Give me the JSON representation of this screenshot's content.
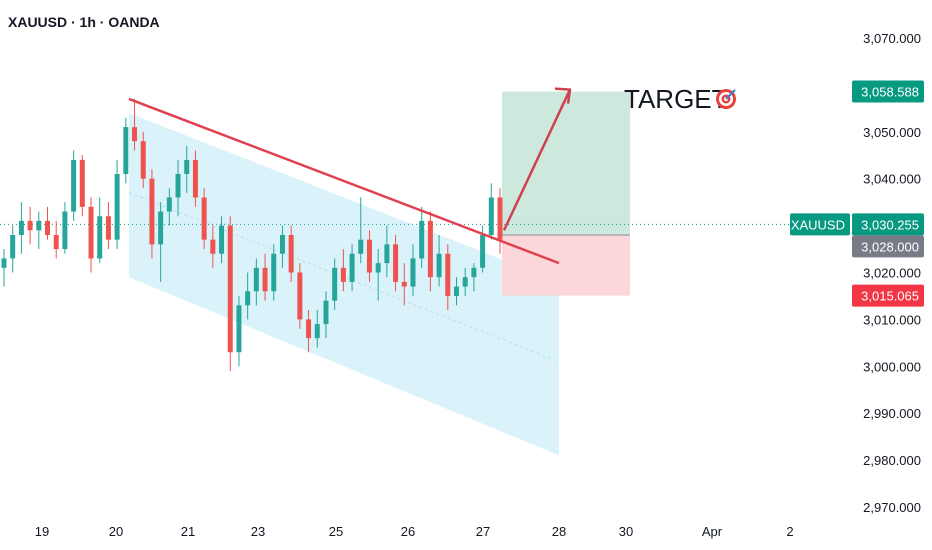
{
  "header": {
    "title": "XAUUSD · 1h · OANDA"
  },
  "colors": {
    "up": "#26a69a",
    "down": "#ef5350",
    "trendline": "#e0404f",
    "channel_fill": "#cdeef7",
    "profit_zone": "#cde9de",
    "loss_zone": "#fbd7da",
    "price_badge": "#089981",
    "entry_badge": "#787b86",
    "stop_badge": "#f23645",
    "arrow": "#d04050"
  },
  "chart_data": {
    "type": "candlestick",
    "symbol": "XAUUSD",
    "interval": "1h",
    "source": "OANDA",
    "y_axis": {
      "range": [
        2965,
        3074
      ],
      "ticks": [
        "3,070.000",
        "3,060.000",
        "3,050.000",
        "3,040.000",
        "3,030.000",
        "3,020.000",
        "3,010.000",
        "3,000.000",
        "2,990.000",
        "2,980.000",
        "2,970.000"
      ],
      "tick_values": [
        3070,
        3060,
        3050,
        3040,
        3030,
        3020,
        3010,
        3000,
        2990,
        2980,
        2970
      ]
    },
    "x_axis": {
      "ticks": [
        "19",
        "20",
        "21",
        "23",
        "25",
        "26",
        "27",
        "28",
        "30",
        "Apr",
        "2"
      ]
    },
    "price_labels": {
      "target": "3,058.588",
      "last_symbol": "XAUUSD",
      "last_price": "3,030.255",
      "entry": "3,028.000",
      "stop": "3,015.065"
    },
    "levels": {
      "target": 3058.588,
      "last": 3030.255,
      "entry": 3028.0,
      "stop": 3015.065
    },
    "trendline": {
      "start": [
        "20",
        3057
      ],
      "end": [
        "28",
        3022
      ]
    },
    "channel": {
      "upper": [
        [
          "20",
          3054
        ],
        [
          "28",
          3018
        ]
      ],
      "lower": [
        [
          "20",
          3019
        ],
        [
          "28",
          2981
        ]
      ]
    },
    "annotation": {
      "text": "TARGET"
    },
    "candles": [
      {
        "o": 3021,
        "h": 3025,
        "l": 3017,
        "c": 3023
      },
      {
        "o": 3023,
        "h": 3030,
        "l": 3020,
        "c": 3028
      },
      {
        "o": 3028,
        "h": 3035,
        "l": 3024,
        "c": 3031
      },
      {
        "o": 3031,
        "h": 3034,
        "l": 3026,
        "c": 3029
      },
      {
        "o": 3029,
        "h": 3033,
        "l": 3025,
        "c": 3031
      },
      {
        "o": 3031,
        "h": 3034,
        "l": 3027,
        "c": 3028
      },
      {
        "o": 3028,
        "h": 3031,
        "l": 3023,
        "c": 3025
      },
      {
        "o": 3025,
        "h": 3035,
        "l": 3024,
        "c": 3033
      },
      {
        "o": 3033,
        "h": 3046,
        "l": 3031,
        "c": 3044
      },
      {
        "o": 3044,
        "h": 3045,
        "l": 3032,
        "c": 3034
      },
      {
        "o": 3034,
        "h": 3036,
        "l": 3020,
        "c": 3023
      },
      {
        "o": 3023,
        "h": 3036,
        "l": 3022,
        "c": 3032
      },
      {
        "o": 3032,
        "h": 3035,
        "l": 3025,
        "c": 3027
      },
      {
        "o": 3027,
        "h": 3044,
        "l": 3025,
        "c": 3041
      },
      {
        "o": 3041,
        "h": 3053,
        "l": 3039,
        "c": 3051
      },
      {
        "o": 3051,
        "h": 3057,
        "l": 3046,
        "c": 3048
      },
      {
        "o": 3048,
        "h": 3050,
        "l": 3038,
        "c": 3040
      },
      {
        "o": 3040,
        "h": 3042,
        "l": 3023,
        "c": 3026
      },
      {
        "o": 3026,
        "h": 3035,
        "l": 3018,
        "c": 3033
      },
      {
        "o": 3033,
        "h": 3038,
        "l": 3030,
        "c": 3036
      },
      {
        "o": 3036,
        "h": 3044,
        "l": 3032,
        "c": 3041
      },
      {
        "o": 3041,
        "h": 3047,
        "l": 3037,
        "c": 3044
      },
      {
        "o": 3044,
        "h": 3046,
        "l": 3034,
        "c": 3036
      },
      {
        "o": 3036,
        "h": 3038,
        "l": 3025,
        "c": 3027
      },
      {
        "o": 3027,
        "h": 3030,
        "l": 3021,
        "c": 3024
      },
      {
        "o": 3024,
        "h": 3032,
        "l": 3022,
        "c": 3030
      },
      {
        "o": 3030,
        "h": 3032,
        "l": 2999,
        "c": 3003
      },
      {
        "o": 3003,
        "h": 3015,
        "l": 3000,
        "c": 3013
      },
      {
        "o": 3013,
        "h": 3020,
        "l": 3010,
        "c": 3016
      },
      {
        "o": 3016,
        "h": 3023,
        "l": 3013,
        "c": 3021
      },
      {
        "o": 3021,
        "h": 3024,
        "l": 3014,
        "c": 3016
      },
      {
        "o": 3016,
        "h": 3026,
        "l": 3014,
        "c": 3024
      },
      {
        "o": 3024,
        "h": 3030,
        "l": 3021,
        "c": 3028
      },
      {
        "o": 3028,
        "h": 3030,
        "l": 3018,
        "c": 3020
      },
      {
        "o": 3020,
        "h": 3022,
        "l": 3008,
        "c": 3010
      },
      {
        "o": 3010,
        "h": 3012,
        "l": 3003,
        "c": 3006
      },
      {
        "o": 3006,
        "h": 3012,
        "l": 3004,
        "c": 3009
      },
      {
        "o": 3009,
        "h": 3016,
        "l": 3006,
        "c": 3014
      },
      {
        "o": 3014,
        "h": 3023,
        "l": 3012,
        "c": 3021
      },
      {
        "o": 3021,
        "h": 3025,
        "l": 3016,
        "c": 3018
      },
      {
        "o": 3018,
        "h": 3026,
        "l": 3016,
        "c": 3024
      },
      {
        "o": 3024,
        "h": 3036,
        "l": 3022,
        "c": 3027
      },
      {
        "o": 3027,
        "h": 3029,
        "l": 3018,
        "c": 3020
      },
      {
        "o": 3020,
        "h": 3025,
        "l": 3014,
        "c": 3022
      },
      {
        "o": 3022,
        "h": 3030,
        "l": 3019,
        "c": 3026
      },
      {
        "o": 3026,
        "h": 3028,
        "l": 3016,
        "c": 3018
      },
      {
        "o": 3018,
        "h": 3022,
        "l": 3013,
        "c": 3017
      },
      {
        "o": 3017,
        "h": 3026,
        "l": 3015,
        "c": 3023
      },
      {
        "o": 3023,
        "h": 3034,
        "l": 3021,
        "c": 3031
      },
      {
        "o": 3031,
        "h": 3033,
        "l": 3016,
        "c": 3019
      },
      {
        "o": 3019,
        "h": 3028,
        "l": 3017,
        "c": 3024
      },
      {
        "o": 3024,
        "h": 3026,
        "l": 3012,
        "c": 3015
      },
      {
        "o": 3015,
        "h": 3019,
        "l": 3013,
        "c": 3017
      },
      {
        "o": 3017,
        "h": 3021,
        "l": 3015,
        "c": 3019
      },
      {
        "o": 3019,
        "h": 3022,
        "l": 3016,
        "c": 3021
      },
      {
        "o": 3021,
        "h": 3030,
        "l": 3020,
        "c": 3028
      },
      {
        "o": 3028,
        "h": 3039,
        "l": 3027,
        "c": 3036
      },
      {
        "o": 3036,
        "h": 3038,
        "l": 3024,
        "c": 3027
      }
    ]
  }
}
